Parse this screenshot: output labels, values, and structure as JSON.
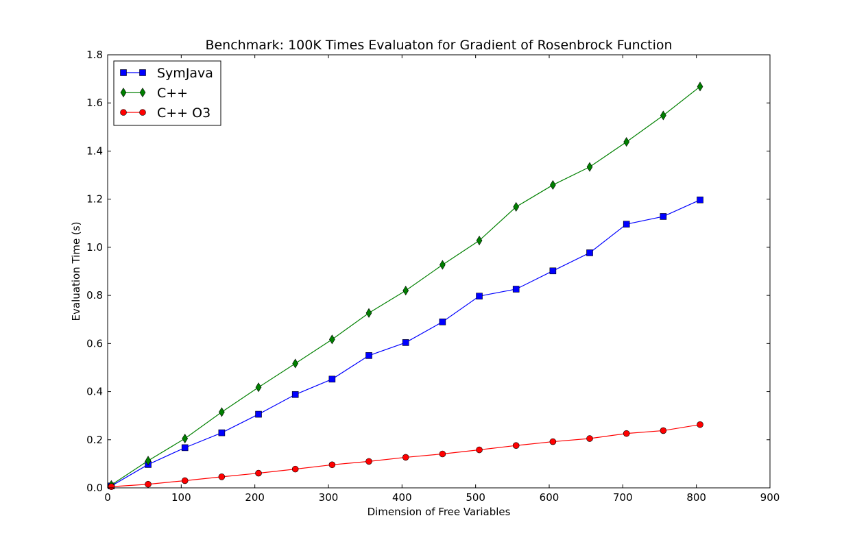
{
  "chart_data": {
    "type": "line",
    "title": "Benchmark: 100K Times Evaluaton for Gradient of Rosenbrock Function",
    "xlabel": "Dimension of Free Variables",
    "ylabel": "Evaluation Time (s)",
    "xlim": [
      0,
      900
    ],
    "ylim": [
      0.0,
      1.8
    ],
    "xticks": [
      0,
      100,
      200,
      300,
      400,
      500,
      600,
      700,
      800,
      900
    ],
    "xtick_labels": [
      "0",
      "100",
      "200",
      "300",
      "400",
      "500",
      "600",
      "700",
      "800",
      "900"
    ],
    "yticks": [
      0.0,
      0.2,
      0.4,
      0.6,
      0.8,
      1.0,
      1.2,
      1.4,
      1.6,
      1.8
    ],
    "ytick_labels": [
      "0.0",
      "0.2",
      "0.4",
      "0.6",
      "0.8",
      "1.0",
      "1.2",
      "1.4",
      "1.6",
      "1.8"
    ],
    "grid": false,
    "legend_position": "top-left",
    "x": [
      5,
      55,
      105,
      155,
      205,
      255,
      305,
      355,
      405,
      455,
      505,
      555,
      605,
      655,
      705,
      755,
      805
    ],
    "series": [
      {
        "name": "SymJava",
        "color": "#0000ff",
        "marker": "square",
        "values": [
          0.008,
          0.097,
          0.167,
          0.229,
          0.306,
          0.388,
          0.452,
          0.55,
          0.604,
          0.69,
          0.797,
          0.826,
          0.902,
          0.977,
          1.096,
          1.128,
          1.197
        ]
      },
      {
        "name": "C++",
        "color": "#008000",
        "marker": "thin_diamond",
        "values": [
          0.012,
          0.113,
          0.205,
          0.315,
          0.418,
          0.517,
          0.617,
          0.727,
          0.82,
          0.927,
          1.028,
          1.168,
          1.259,
          1.334,
          1.438,
          1.548,
          1.668
        ]
      },
      {
        "name": "C++ O3",
        "color": "#ff0000",
        "marker": "circle",
        "values": [
          0.005,
          0.015,
          0.03,
          0.046,
          0.061,
          0.078,
          0.096,
          0.11,
          0.127,
          0.141,
          0.158,
          0.176,
          0.192,
          0.205,
          0.226,
          0.238,
          0.263
        ]
      }
    ]
  }
}
